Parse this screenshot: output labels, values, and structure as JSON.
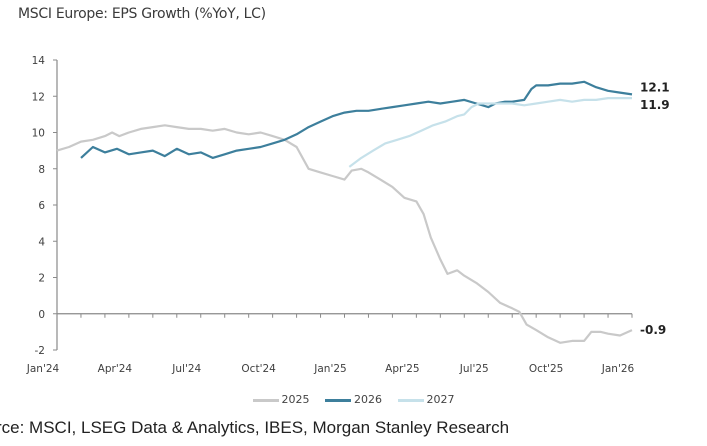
{
  "chart_data": {
    "type": "line",
    "title": "MSCI Europe: EPS Growth (%YoY, LC)",
    "xlabel": "",
    "ylabel": "",
    "ylim": [
      -2,
      14
    ],
    "yticks": [
      -2,
      0,
      2,
      4,
      6,
      8,
      10,
      12,
      14
    ],
    "xlim": [
      0,
      24
    ],
    "xticks": [
      {
        "month": 0,
        "label": "Jan'24"
      },
      {
        "month": 3,
        "label": "Apr'24"
      },
      {
        "month": 6,
        "label": "Jul'24"
      },
      {
        "month": 9,
        "label": "Oct'24"
      },
      {
        "month": 12,
        "label": "Jan'25"
      },
      {
        "month": 15,
        "label": "Apr'25"
      },
      {
        "month": 18,
        "label": "Jul'25"
      },
      {
        "month": 21,
        "label": "Oct'25"
      },
      {
        "month": 24,
        "label": "Jan'26"
      }
    ],
    "grid": false,
    "legend": "bottom-center",
    "series": [
      {
        "name": "2025",
        "color": "#c9c9c9",
        "end_label": "-0.9",
        "points": [
          [
            0,
            9.0
          ],
          [
            0.5,
            9.2
          ],
          [
            1,
            9.5
          ],
          [
            1.5,
            9.6
          ],
          [
            2,
            9.8
          ],
          [
            2.3,
            10.0
          ],
          [
            2.6,
            9.8
          ],
          [
            3,
            10.0
          ],
          [
            3.5,
            10.2
          ],
          [
            4,
            10.3
          ],
          [
            4.5,
            10.4
          ],
          [
            5,
            10.3
          ],
          [
            5.5,
            10.2
          ],
          [
            6,
            10.2
          ],
          [
            6.5,
            10.1
          ],
          [
            7,
            10.2
          ],
          [
            7.5,
            10.0
          ],
          [
            8,
            9.9
          ],
          [
            8.5,
            10.0
          ],
          [
            9,
            9.8
          ],
          [
            9.5,
            9.6
          ],
          [
            10,
            9.2
          ],
          [
            10.5,
            8.0
          ],
          [
            11,
            7.8
          ],
          [
            11.5,
            7.6
          ],
          [
            12,
            7.4
          ],
          [
            12.3,
            7.9
          ],
          [
            12.7,
            8.0
          ],
          [
            13,
            7.8
          ],
          [
            13.5,
            7.4
          ],
          [
            14,
            7.0
          ],
          [
            14.5,
            6.4
          ],
          [
            15,
            6.2
          ],
          [
            15.3,
            5.5
          ],
          [
            15.6,
            4.2
          ],
          [
            16,
            3.0
          ],
          [
            16.3,
            2.2
          ],
          [
            16.7,
            2.4
          ],
          [
            17,
            2.1
          ],
          [
            17.5,
            1.7
          ],
          [
            18,
            1.2
          ],
          [
            18.5,
            0.6
          ],
          [
            19,
            0.3
          ],
          [
            19.3,
            0.1
          ],
          [
            19.6,
            -0.6
          ],
          [
            20,
            -0.9
          ],
          [
            20.5,
            -1.3
          ],
          [
            21,
            -1.6
          ],
          [
            21.5,
            -1.5
          ],
          [
            22,
            -1.5
          ],
          [
            22.3,
            -1.0
          ],
          [
            22.7,
            -1.0
          ],
          [
            23,
            -1.1
          ],
          [
            23.5,
            -1.2
          ],
          [
            24,
            -0.9
          ]
        ]
      },
      {
        "name": "2026",
        "color": "#3d7f9c",
        "end_label": "12.1",
        "points": [
          [
            1,
            8.6
          ],
          [
            1.5,
            9.2
          ],
          [
            2,
            8.9
          ],
          [
            2.5,
            9.1
          ],
          [
            3,
            8.8
          ],
          [
            3.5,
            8.9
          ],
          [
            4,
            9.0
          ],
          [
            4.5,
            8.7
          ],
          [
            5,
            9.1
          ],
          [
            5.5,
            8.8
          ],
          [
            6,
            8.9
          ],
          [
            6.5,
            8.6
          ],
          [
            7,
            8.8
          ],
          [
            7.5,
            9.0
          ],
          [
            8,
            9.1
          ],
          [
            8.5,
            9.2
          ],
          [
            9,
            9.4
          ],
          [
            9.5,
            9.6
          ],
          [
            10,
            9.9
          ],
          [
            10.5,
            10.3
          ],
          [
            11,
            10.6
          ],
          [
            11.5,
            10.9
          ],
          [
            12,
            11.1
          ],
          [
            12.5,
            11.2
          ],
          [
            13,
            11.2
          ],
          [
            13.5,
            11.3
          ],
          [
            14,
            11.4
          ],
          [
            14.5,
            11.5
          ],
          [
            15,
            11.6
          ],
          [
            15.5,
            11.7
          ],
          [
            16,
            11.6
          ],
          [
            16.5,
            11.7
          ],
          [
            17,
            11.8
          ],
          [
            17.5,
            11.6
          ],
          [
            18,
            11.4
          ],
          [
            18.3,
            11.6
          ],
          [
            18.7,
            11.7
          ],
          [
            19,
            11.7
          ],
          [
            19.5,
            11.8
          ],
          [
            19.8,
            12.4
          ],
          [
            20,
            12.6
          ],
          [
            20.5,
            12.6
          ],
          [
            21,
            12.7
          ],
          [
            21.5,
            12.7
          ],
          [
            22,
            12.8
          ],
          [
            22.5,
            12.5
          ],
          [
            23,
            12.3
          ],
          [
            23.5,
            12.2
          ],
          [
            24,
            12.1
          ]
        ]
      },
      {
        "name": "2027",
        "color": "#c6e1ea",
        "end_label": "11.9",
        "points": [
          [
            12.2,
            8.1
          ],
          [
            12.7,
            8.6
          ],
          [
            13.2,
            9.0
          ],
          [
            13.7,
            9.4
          ],
          [
            14.2,
            9.6
          ],
          [
            14.7,
            9.8
          ],
          [
            15.2,
            10.1
          ],
          [
            15.7,
            10.4
          ],
          [
            16.2,
            10.6
          ],
          [
            16.7,
            10.9
          ],
          [
            17,
            11.0
          ],
          [
            17.3,
            11.4
          ],
          [
            17.6,
            11.6
          ],
          [
            18,
            11.6
          ],
          [
            18.5,
            11.6
          ],
          [
            19,
            11.6
          ],
          [
            19.5,
            11.5
          ],
          [
            20,
            11.6
          ],
          [
            20.5,
            11.7
          ],
          [
            21,
            11.8
          ],
          [
            21.5,
            11.7
          ],
          [
            22,
            11.8
          ],
          [
            22.5,
            11.8
          ],
          [
            23,
            11.9
          ],
          [
            23.5,
            11.9
          ],
          [
            24,
            11.9
          ]
        ]
      }
    ]
  },
  "source_text": "rce: MSCI, LSEG Data & Analytics, IBES, Morgan Stanley Research"
}
